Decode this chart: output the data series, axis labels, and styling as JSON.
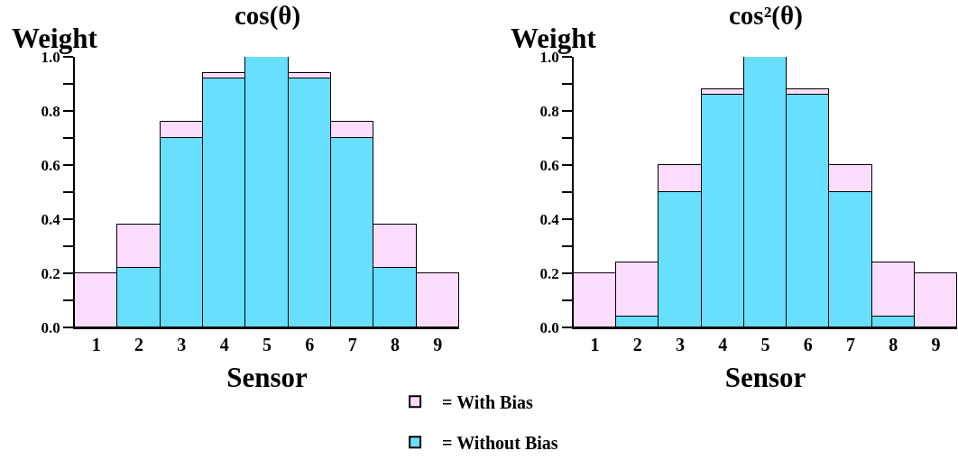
{
  "chart_data": [
    {
      "type": "bar",
      "title": "cos(θ)",
      "xlabel": "Sensor",
      "ylabel": "Weight",
      "categories": [
        "1",
        "2",
        "3",
        "4",
        "5",
        "6",
        "7",
        "8",
        "9"
      ],
      "stacked": true,
      "legend": "bottom",
      "series": [
        {
          "name": "= Without Bias",
          "color": "#68dffd",
          "values": [
            null,
            0.22,
            0.7,
            0.92,
            1.0,
            0.92,
            0.7,
            0.22,
            null
          ]
        },
        {
          "name": "= With Bias",
          "color": "#fcdcfc",
          "values": [
            0.2,
            0.16,
            0.06,
            0.02,
            null,
            0.02,
            0.06,
            0.16,
            0.2
          ]
        }
      ],
      "ylim": [
        0,
        1
      ],
      "yticks": [
        {
          "value": 0,
          "label": "0.0"
        },
        {
          "value": 0.1,
          "label": null
        },
        0.2,
        {
          "value": 0.3,
          "label": null
        },
        0.4,
        {
          "value": 0.5,
          "label": null
        },
        0.6,
        {
          "value": 0.7,
          "label": null
        },
        0.8,
        {
          "value": 0.9,
          "label": null
        },
        {
          "value": 1,
          "label": "1.0"
        }
      ]
    },
    {
      "type": "bar",
      "title": "cos²(θ)",
      "xlabel": "Sensor",
      "ylabel": "Weight",
      "categories": [
        "1",
        "2",
        "3",
        "4",
        "5",
        "6",
        "7",
        "8",
        "9"
      ],
      "stacked": true,
      "series": [
        {
          "color": "#68dffd",
          "values": [
            null,
            0.04,
            0.5,
            0.86,
            1.0,
            0.86,
            0.5,
            0.04,
            null
          ]
        },
        {
          "color": "#fcdcfc",
          "values": [
            0.2,
            0.2,
            0.1,
            0.02,
            null,
            0.02,
            0.1,
            0.2,
            0.2
          ]
        }
      ],
      "ylim": [
        0,
        1
      ],
      "yticks": [
        {
          "value": 0,
          "label": "0.0"
        },
        {
          "value": 0.1,
          "label": null
        },
        0.2,
        {
          "value": 0.3,
          "label": null
        },
        0.4,
        {
          "value": 0.5,
          "label": null
        },
        0.6,
        {
          "value": 0.7,
          "label": null
        },
        0.8,
        {
          "value": 0.9,
          "label": null
        },
        {
          "value": 1,
          "label": "1.0"
        }
      ]
    }
  ]
}
